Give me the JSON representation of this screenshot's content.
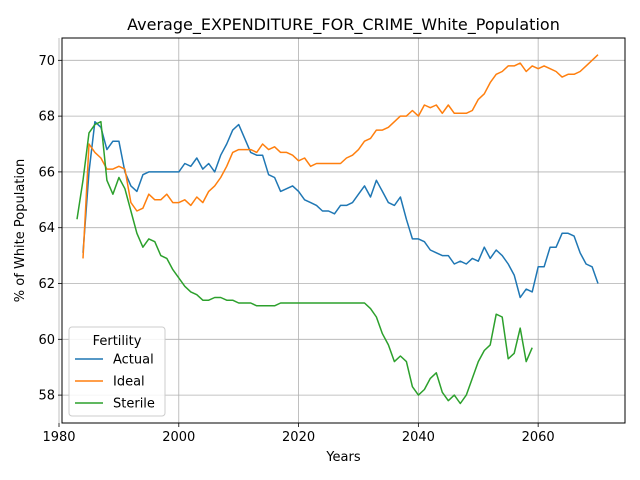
{
  "chart_data": {
    "type": "line",
    "title": "Average_EXPENDITURE_FOR_CRIME_White_Population",
    "xlabel": "Years",
    "ylabel": "% of White Population",
    "xlim": [
      1980.5,
      2074.5
    ],
    "ylim": [
      57.0,
      70.8
    ],
    "xticks": [
      1980,
      2000,
      2020,
      2040,
      2060
    ],
    "yticks": [
      58,
      60,
      62,
      64,
      66,
      68,
      70
    ],
    "grid": true,
    "legend": {
      "title": "Fertility",
      "placement": "lower-left"
    },
    "series": [
      {
        "name": "Actual",
        "color": "#1f77b4",
        "x": [
          1984,
          1985,
          1986,
          1987,
          1988,
          1989,
          1990,
          1991,
          1992,
          1993,
          1994,
          1995,
          1996,
          1997,
          1998,
          1999,
          2000,
          2001,
          2002,
          2003,
          2004,
          2005,
          2006,
          2007,
          2008,
          2009,
          2010,
          2011,
          2012,
          2013,
          2014,
          2015,
          2016,
          2017,
          2018,
          2019,
          2020,
          2021,
          2022,
          2023,
          2024,
          2025,
          2026,
          2027,
          2028,
          2029,
          2030,
          2031,
          2032,
          2033,
          2034,
          2035,
          2036,
          2037,
          2038,
          2039,
          2040,
          2041,
          2042,
          2043,
          2044,
          2045,
          2046,
          2047,
          2048,
          2049,
          2050,
          2051,
          2052,
          2053,
          2054,
          2055,
          2056,
          2057,
          2058,
          2059,
          2060,
          2061,
          2062,
          2063,
          2064,
          2065,
          2066,
          2067,
          2068,
          2069,
          2070
        ],
        "y": [
          63.1,
          66.0,
          67.8,
          67.6,
          66.8,
          67.1,
          67.1,
          66.0,
          65.5,
          65.3,
          65.9,
          66.0,
          66.0,
          66.0,
          66.0,
          66.0,
          66.0,
          66.3,
          66.2,
          66.5,
          66.1,
          66.3,
          66.0,
          66.6,
          67.0,
          67.5,
          67.7,
          67.2,
          66.7,
          66.6,
          66.6,
          65.9,
          65.8,
          65.3,
          65.4,
          65.5,
          65.3,
          65.0,
          64.9,
          64.8,
          64.6,
          64.6,
          64.5,
          64.8,
          64.8,
          64.9,
          65.2,
          65.5,
          65.1,
          65.7,
          65.3,
          64.9,
          64.8,
          65.1,
          64.3,
          63.6,
          63.6,
          63.5,
          63.2,
          63.1,
          63.0,
          63.0,
          62.7,
          62.8,
          62.7,
          62.9,
          62.8,
          63.3,
          62.9,
          63.2,
          63.0,
          62.7,
          62.3,
          61.5,
          61.8,
          61.7,
          62.6,
          62.6,
          63.3,
          63.3,
          63.8,
          63.8,
          63.7,
          63.1,
          62.7,
          62.6,
          62.0
        ]
      },
      {
        "name": "Ideal",
        "color": "#ff7f0e",
        "x": [
          1984,
          1985,
          1986,
          1987,
          1988,
          1989,
          1990,
          1991,
          1992,
          1993,
          1994,
          1995,
          1996,
          1997,
          1998,
          1999,
          2000,
          2001,
          2002,
          2003,
          2004,
          2005,
          2006,
          2007,
          2008,
          2009,
          2010,
          2011,
          2012,
          2013,
          2014,
          2015,
          2016,
          2017,
          2018,
          2019,
          2020,
          2021,
          2022,
          2023,
          2024,
          2025,
          2026,
          2027,
          2028,
          2029,
          2030,
          2031,
          2032,
          2033,
          2034,
          2035,
          2036,
          2037,
          2038,
          2039,
          2040,
          2041,
          2042,
          2043,
          2044,
          2045,
          2046,
          2047,
          2048,
          2049,
          2050,
          2051,
          2052,
          2053,
          2054,
          2055,
          2056,
          2057,
          2058,
          2059,
          2060,
          2061,
          2062,
          2063,
          2064,
          2065,
          2066,
          2067,
          2068,
          2069,
          2070
        ],
        "y": [
          62.9,
          67.0,
          66.7,
          66.5,
          66.1,
          66.1,
          66.2,
          66.1,
          64.9,
          64.6,
          64.7,
          65.2,
          65.0,
          65.0,
          65.2,
          64.9,
          64.9,
          65.0,
          64.8,
          65.1,
          64.9,
          65.3,
          65.5,
          65.8,
          66.2,
          66.7,
          66.8,
          66.8,
          66.8,
          66.7,
          67.0,
          66.8,
          66.9,
          66.7,
          66.7,
          66.6,
          66.4,
          66.5,
          66.2,
          66.3,
          66.3,
          66.3,
          66.3,
          66.3,
          66.5,
          66.6,
          66.8,
          67.1,
          67.2,
          67.5,
          67.5,
          67.6,
          67.8,
          68.0,
          68.0,
          68.2,
          68.0,
          68.4,
          68.3,
          68.4,
          68.1,
          68.4,
          68.1,
          68.1,
          68.1,
          68.2,
          68.6,
          68.8,
          69.2,
          69.5,
          69.6,
          69.8,
          69.8,
          69.9,
          69.6,
          69.8,
          69.7,
          69.8,
          69.7,
          69.6,
          69.4,
          69.5,
          69.5,
          69.6,
          69.8,
          70.0,
          70.2
        ]
      },
      {
        "name": "Sterile",
        "color": "#2ca02c",
        "x": [
          1983,
          1984,
          1985,
          1986,
          1987,
          1988,
          1989,
          1990,
          1991,
          1992,
          1993,
          1994,
          1995,
          1996,
          1997,
          1998,
          1999,
          2000,
          2001,
          2002,
          2003,
          2004,
          2005,
          2006,
          2007,
          2008,
          2009,
          2010,
          2011,
          2012,
          2013,
          2014,
          2015,
          2016,
          2017,
          2018,
          2019,
          2020,
          2021,
          2022,
          2023,
          2024,
          2025,
          2026,
          2027,
          2028,
          2029,
          2030,
          2031,
          2032,
          2033,
          2034,
          2035,
          2036,
          2037,
          2038,
          2039,
          2040,
          2041,
          2042,
          2043,
          2044,
          2045,
          2046,
          2047,
          2048,
          2049,
          2050,
          2051,
          2052,
          2053,
          2054,
          2055,
          2056,
          2057,
          2058,
          2059
        ],
        "y": [
          64.3,
          65.7,
          67.4,
          67.7,
          67.8,
          65.7,
          65.2,
          65.8,
          65.4,
          64.6,
          63.8,
          63.3,
          63.6,
          63.5,
          63.0,
          62.9,
          62.5,
          62.2,
          61.9,
          61.7,
          61.6,
          61.4,
          61.4,
          61.5,
          61.5,
          61.4,
          61.4,
          61.3,
          61.3,
          61.3,
          61.2,
          61.2,
          61.2,
          61.2,
          61.3,
          61.3,
          61.3,
          61.3,
          61.3,
          61.3,
          61.3,
          61.3,
          61.3,
          61.3,
          61.3,
          61.3,
          61.3,
          61.3,
          61.3,
          61.1,
          60.8,
          60.2,
          59.8,
          59.2,
          59.4,
          59.2,
          58.3,
          58.0,
          58.2,
          58.6,
          58.8,
          58.1,
          57.8,
          58.0,
          57.7,
          58.0,
          58.6,
          59.2,
          59.6,
          59.8,
          60.9,
          60.8,
          59.3,
          59.5,
          60.4,
          59.2,
          59.7
        ]
      }
    ]
  }
}
